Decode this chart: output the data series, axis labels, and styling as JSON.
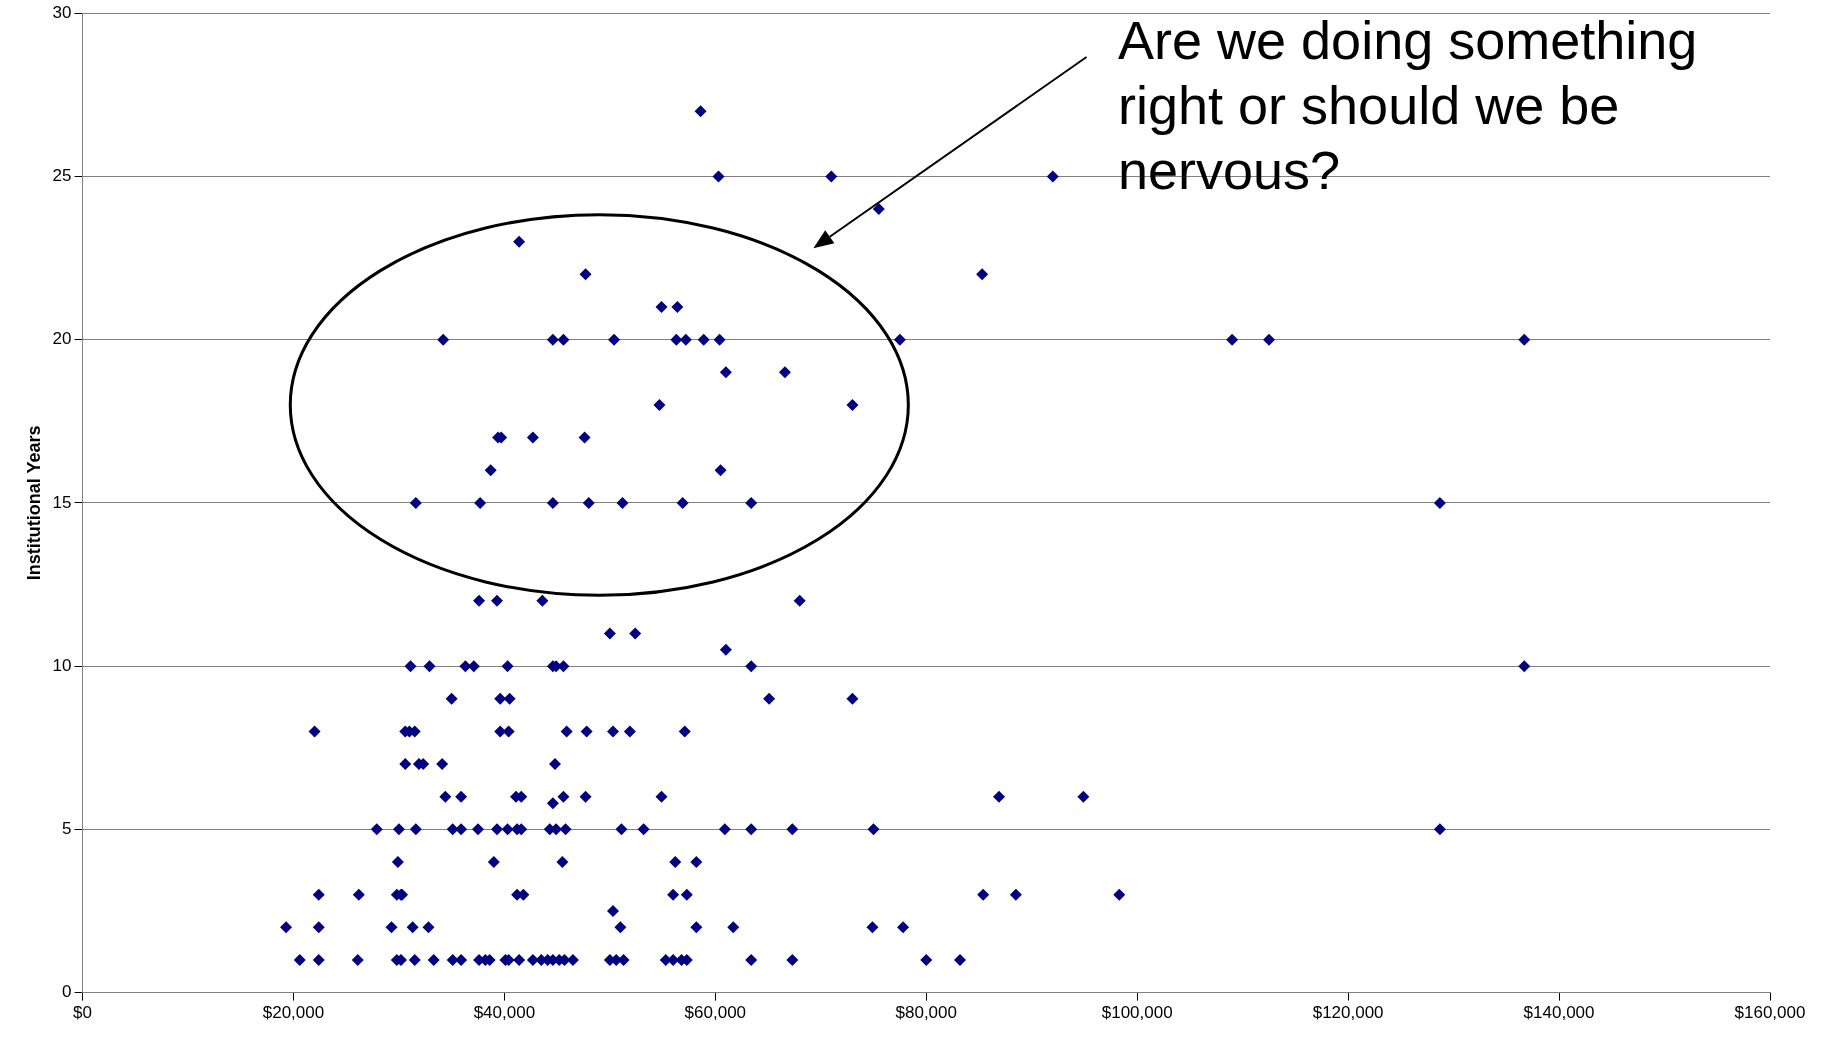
{
  "chart_data": {
    "type": "scatter",
    "ylabel": "Institutional Years",
    "annotations": [
      "Are we doing something right or should we be nervous?"
    ],
    "marker": "diamond",
    "grid": "y",
    "legend": false,
    "xlim": [
      0,
      160000
    ],
    "xticks": [
      {
        "value": 0,
        "label": "$0"
      },
      {
        "value": 20000,
        "label": "$20,000"
      },
      {
        "value": 40000,
        "label": "$40,000"
      },
      {
        "value": 60000,
        "label": "$60,000"
      },
      {
        "value": 80000,
        "label": "$80,000"
      },
      {
        "value": 100000,
        "label": "$100,000"
      },
      {
        "value": 120000,
        "label": "$120,000"
      },
      {
        "value": 140000,
        "label": "$140,000"
      },
      {
        "value": 160000,
        "label": "$160,000"
      }
    ],
    "ylim": [
      0,
      30
    ],
    "yticks": [
      0,
      5,
      10,
      15,
      20,
      25,
      30
    ],
    "series": [
      {
        "color": "#000080",
        "x": [
          58600,
          60300,
          71000,
          92000,
          75500,
          41400,
          47700,
          85300,
          54900,
          56400,
          34200,
          44600,
          45600,
          50400,
          56300,
          57200,
          58900,
          60400,
          77500,
          109000,
          112500,
          136700,
          61000,
          66600,
          54700,
          73000,
          39400,
          39700,
          42700,
          47600,
          38700,
          60500,
          31600,
          37700,
          44600,
          48000,
          51200,
          56900,
          63400,
          128700,
          37600,
          39300,
          43600,
          68000,
          50000,
          52400,
          61000,
          31100,
          32900,
          36300,
          37100,
          40300,
          44600,
          44900,
          45600,
          63400,
          136700,
          35000,
          39600,
          40500,
          65100,
          73000,
          22000,
          30600,
          31000,
          31500,
          39600,
          40400,
          45900,
          47800,
          50300,
          51900,
          57100,
          30600,
          31900,
          32300,
          34100,
          44800,
          34400,
          35900,
          41100,
          41600,
          45600,
          47700,
          54900,
          86900,
          94900,
          44600,
          27900,
          30000,
          31600,
          35100,
          35900,
          37500,
          39300,
          40300,
          41200,
          41600,
          44300,
          44900,
          45800,
          51100,
          53200,
          60900,
          63400,
          67300,
          75000,
          128700,
          29900,
          39000,
          45500,
          56200,
          58200,
          22400,
          26200,
          29800,
          30200,
          30300,
          41200,
          41800,
          56000,
          57300,
          85400,
          88500,
          98300,
          50300,
          19300,
          22400,
          29300,
          31300,
          32800,
          51000,
          58200,
          61700,
          74900,
          77800,
          20600,
          22400,
          26100,
          29800,
          30200,
          31500,
          33300,
          35100,
          35900,
          37600,
          38200,
          38600,
          40100,
          40400,
          41400,
          42700,
          43500,
          44100,
          44600,
          45200,
          45700,
          46500,
          50000,
          50600,
          51300,
          55300,
          56000,
          56800,
          57300,
          63400,
          67300,
          80000,
          83200
        ],
        "values": [
          27,
          25,
          25,
          25,
          24,
          23,
          22,
          22,
          21,
          21,
          20,
          20,
          20,
          20,
          20,
          20,
          20,
          20,
          20,
          20,
          20,
          20,
          19,
          19,
          18,
          18,
          17,
          17,
          17,
          17,
          16,
          16,
          15,
          15,
          15,
          15,
          15,
          15,
          15,
          15,
          12,
          12,
          12,
          12,
          11,
          11,
          10.5,
          10,
          10,
          10,
          10,
          10,
          10,
          10,
          10,
          10,
          10,
          9,
          9,
          9,
          9,
          9,
          8,
          8,
          8,
          8,
          8,
          8,
          8,
          8,
          8,
          8,
          8,
          7,
          7,
          7,
          7,
          7,
          6,
          6,
          6,
          6,
          6,
          6,
          6,
          6,
          6,
          5.8,
          5,
          5,
          5,
          5,
          5,
          5,
          5,
          5,
          5,
          5,
          5,
          5,
          5,
          5,
          5,
          5,
          5,
          5,
          5,
          5,
          4,
          4,
          4,
          4,
          4,
          3,
          3,
          3,
          3,
          3,
          3,
          3,
          3,
          3,
          3,
          3,
          3,
          2.5,
          2,
          2,
          2,
          2,
          2,
          2,
          2,
          2,
          2,
          2,
          1,
          1,
          1,
          1,
          1,
          1,
          1,
          1,
          1,
          1,
          1,
          1,
          1,
          1,
          1,
          1,
          1,
          1,
          1,
          1,
          1,
          1,
          1,
          1,
          1,
          1,
          1,
          1,
          1,
          1,
          1,
          1,
          1
        ]
      }
    ]
  }
}
